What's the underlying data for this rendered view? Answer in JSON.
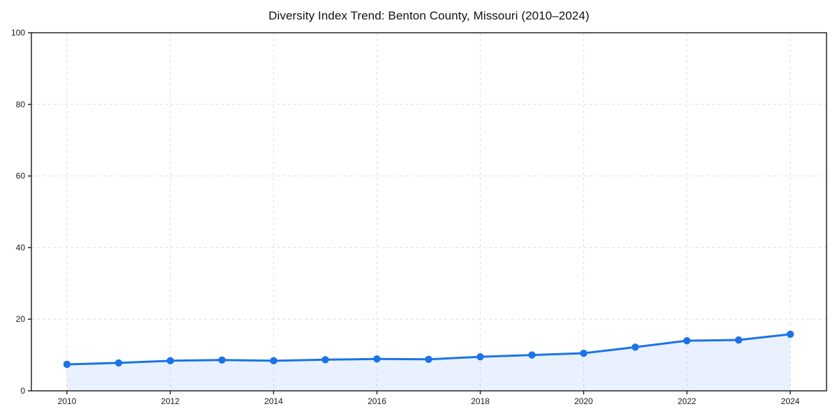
{
  "figure": {
    "title": "Diversity Index Trend: Benton County, Missouri (2010–2024)"
  },
  "chart_data": {
    "type": "line",
    "title": "Diversity Index Trend: Benton County, Missouri (2010–2024)",
    "xlabel": "",
    "ylabel": "",
    "x": [
      2010,
      2011,
      2012,
      2013,
      2014,
      2015,
      2016,
      2017,
      2018,
      2019,
      2020,
      2021,
      2022,
      2023,
      2024
    ],
    "series": [
      {
        "name": "Diversity Index",
        "values": [
          7.4,
          7.8,
          8.4,
          8.6,
          8.4,
          8.7,
          8.9,
          8.8,
          9.5,
          10.0,
          10.5,
          12.2,
          14.0,
          14.2,
          15.8
        ]
      }
    ],
    "ylim": [
      0,
      100
    ],
    "yticks": [
      0,
      20,
      40,
      60,
      80,
      100
    ],
    "xticks": [
      2010,
      2012,
      2014,
      2016,
      2018,
      2020,
      2022,
      2024
    ],
    "grid": true,
    "grid_style": "dashed",
    "legend": false,
    "marker": "circle",
    "area_fill": true,
    "colors": {
      "line": "#1a73e8",
      "marker": "#1a73e8",
      "fill": "rgba(26,115,232,0.10)",
      "grid": "#dedede",
      "spine": "#262626",
      "text": "#1a1a1a"
    }
  }
}
